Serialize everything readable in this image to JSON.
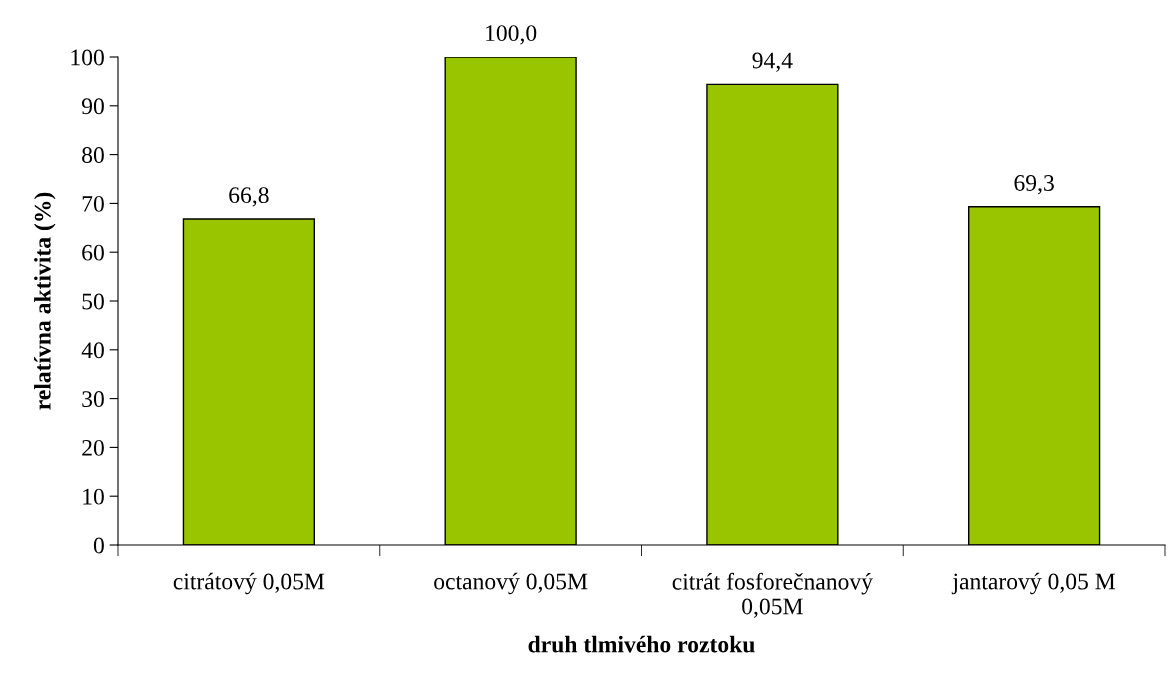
{
  "chart_data": {
    "type": "bar",
    "xlabel": "druh tlmivého roztoku",
    "ylabel": "relatívna aktivita (%)",
    "categories": [
      "citrátový 0,05M",
      "octanový 0,05M",
      "citrát fosforečnanový\n0,05M",
      "jantarový 0,05 M"
    ],
    "values": [
      66.8,
      100.0,
      94.4,
      69.3
    ],
    "value_labels": [
      "66,8",
      "100,0",
      "94,4",
      "69,3"
    ],
    "color": "#99c400",
    "ylim": [
      0,
      100
    ],
    "yticks": [
      0,
      10,
      20,
      30,
      40,
      50,
      60,
      70,
      80,
      90,
      100
    ],
    "grid": false,
    "legend": false
  }
}
